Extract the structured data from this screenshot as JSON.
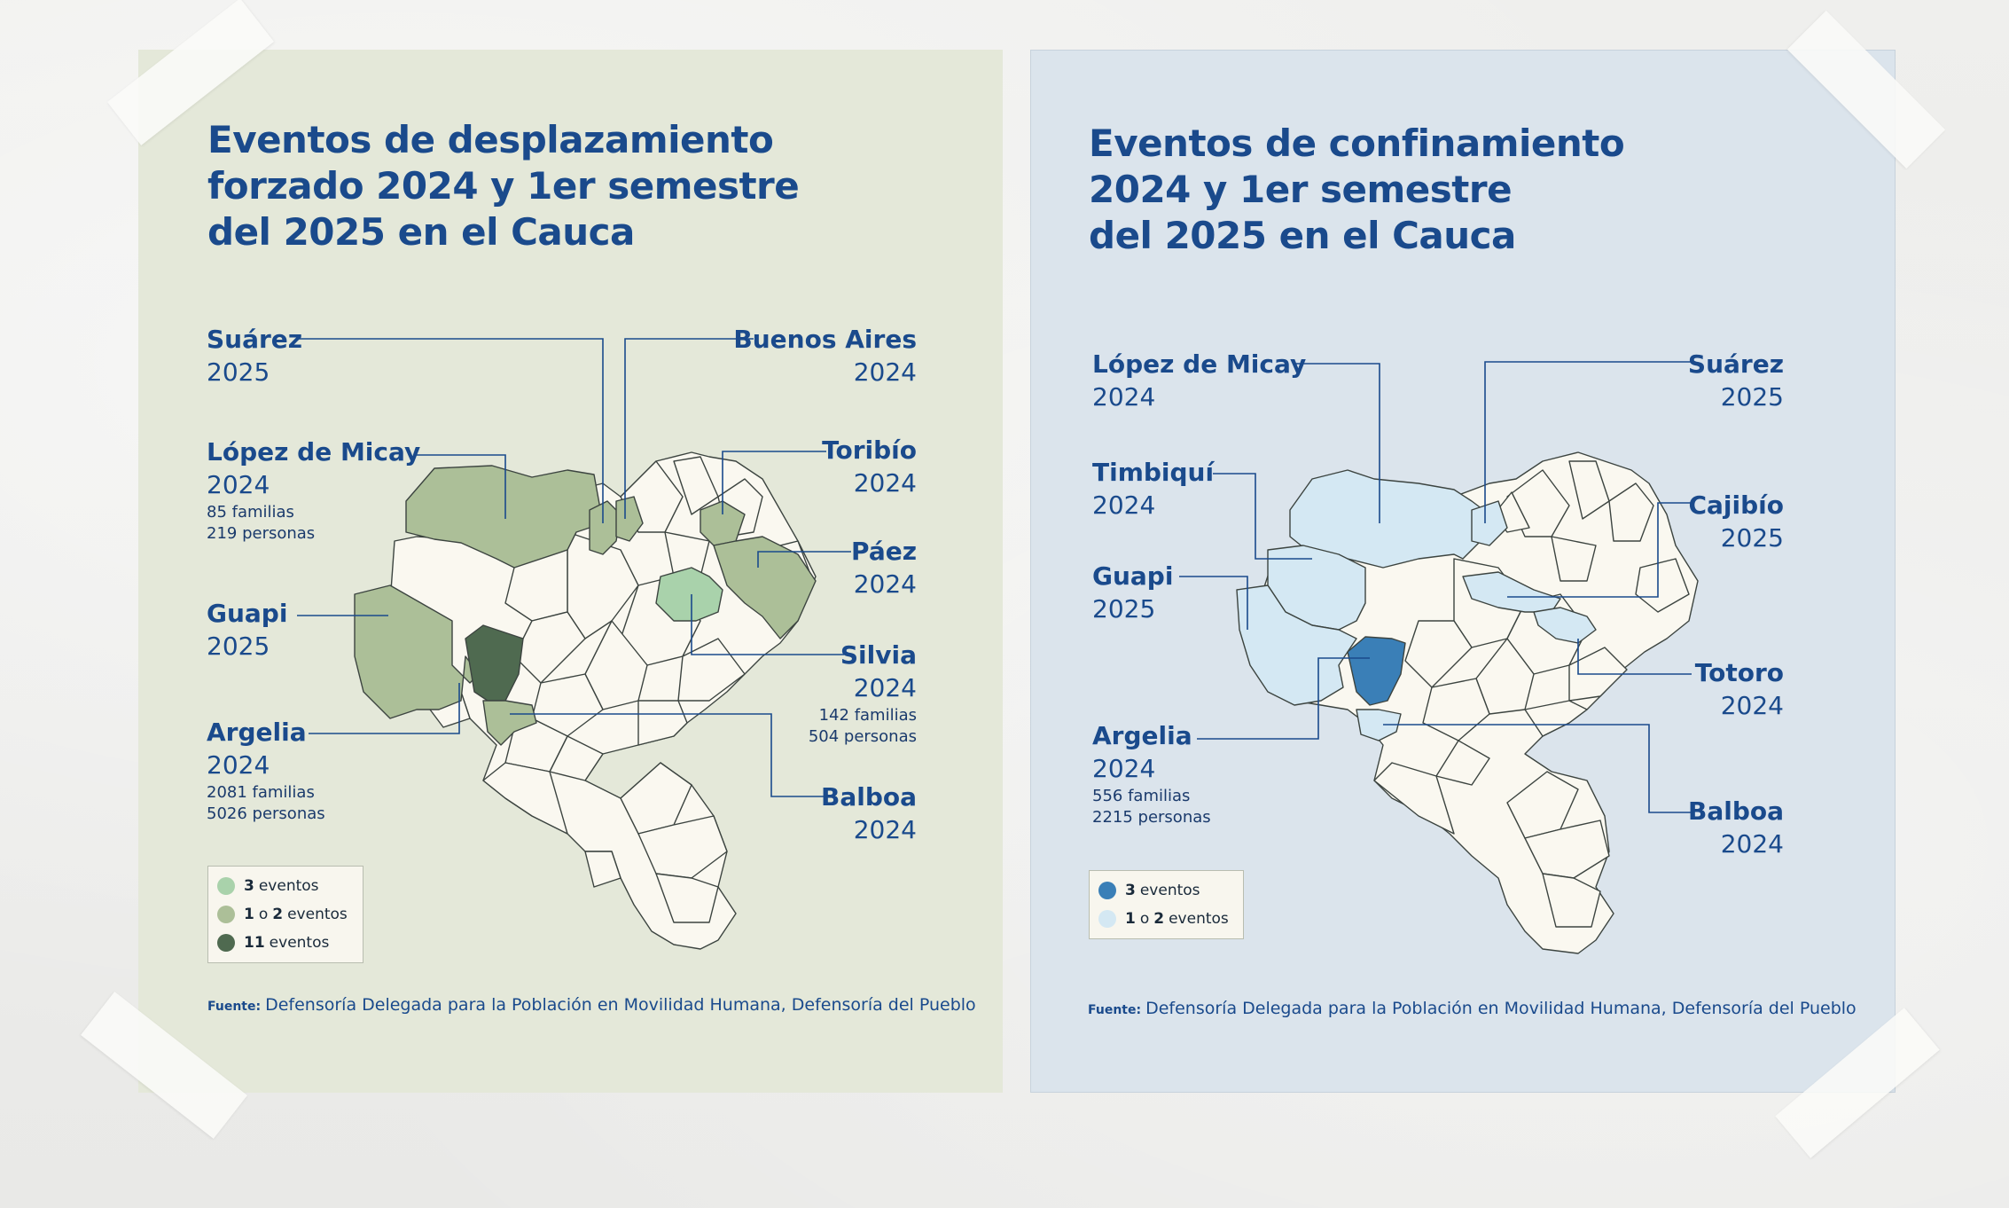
{
  "panels": {
    "displacement": {
      "title_lines": [
        "Eventos de desplazamiento",
        "forzado 2024 y 1er semestre",
        "del 2025 en el Cauca"
      ],
      "labels": {
        "suarez": {
          "name": "Suárez",
          "year": "2025"
        },
        "buenos_aires": {
          "name": "Buenos Aires",
          "year": "2024"
        },
        "lopez_de_micay": {
          "name": "López de Micay",
          "year": "2024",
          "families": "85 familias",
          "people": "219 personas"
        },
        "toribio": {
          "name": "Toribío",
          "year": "2024"
        },
        "paez": {
          "name": "Páez",
          "year": "2024"
        },
        "guapi": {
          "name": "Guapi",
          "year": "2025"
        },
        "silvia": {
          "name": "Silvia",
          "year": "2024",
          "families": "142 familias",
          "people": "504 personas"
        },
        "argelia": {
          "name": "Argelia",
          "year": "2024",
          "families": "2081 familias",
          "people": "5026 personas"
        },
        "balboa": {
          "name": "Balboa",
          "year": "2024"
        }
      },
      "legend": [
        {
          "count": "3",
          "text": "eventos",
          "color": "#a9d2ab"
        },
        {
          "count": "1",
          "or": "o",
          "count2": "2",
          "text": "eventos",
          "color": "#acbf98"
        },
        {
          "count": "11",
          "text": "eventos",
          "color": "#4f6a50"
        }
      ],
      "colors": {
        "eleven_events": "#4f6a50",
        "one_or_two": "#acbf98",
        "three": "#a9d2ab",
        "base": "#faf8f0"
      },
      "source_key": "Fuente:",
      "source_text": "Defensoría Delegada para la Población en Movilidad Humana, Defensoría del Pueblo"
    },
    "confinement": {
      "title_lines": [
        "Eventos de confinamiento",
        "2024 y 1er semestre",
        "del 2025 en el Cauca"
      ],
      "labels": {
        "lopez_de_micay": {
          "name": "López de Micay",
          "year": "2024"
        },
        "suarez": {
          "name": "Suárez",
          "year": "2025"
        },
        "timbiqui": {
          "name": "Timbiquí",
          "year": "2024"
        },
        "cajibio": {
          "name": "Cajibío",
          "year": "2025"
        },
        "guapi": {
          "name": "Guapi",
          "year": "2025"
        },
        "totoro": {
          "name": "Totoro",
          "year": "2024"
        },
        "argelia": {
          "name": "Argelia",
          "year": "2024",
          "families": "556 familias",
          "people": "2215 personas"
        },
        "balboa": {
          "name": "Balboa",
          "year": "2024"
        }
      },
      "legend": [
        {
          "count": "3",
          "text": "eventos",
          "color": "#3a7fb7"
        },
        {
          "count": "1",
          "or": "o",
          "count2": "2",
          "text": "eventos",
          "color": "#d4e8f3"
        }
      ],
      "colors": {
        "three": "#3a7fb7",
        "one_or_two": "#d4e8f3",
        "base": "#faf8f0"
      },
      "source_key": "Fuente:",
      "source_text": "Defensoría Delegada para la Población en Movilidad Humana, Defensoría del Pueblo"
    }
  }
}
